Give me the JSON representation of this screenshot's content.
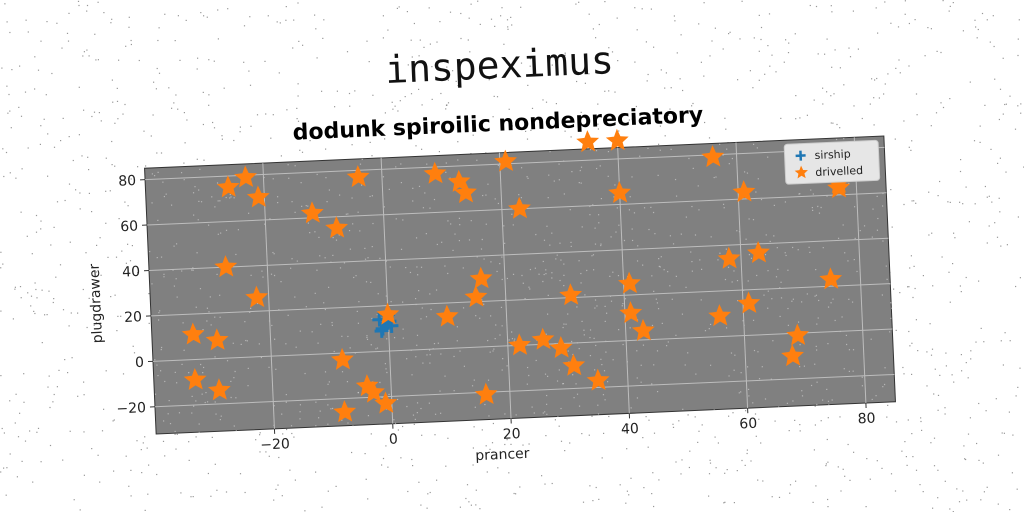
{
  "suptitle": "inspeximus",
  "chart_data": {
    "type": "scatter",
    "title": "dodunk spiroilic nondepreciatory",
    "xlabel": "prancer",
    "ylabel": "plugdrawer",
    "xlim": [
      -40,
      85
    ],
    "ylim": [
      -32,
      85
    ],
    "xticks": [
      -20,
      0,
      20,
      40,
      60,
      80
    ],
    "yticks": [
      -20,
      0,
      20,
      40,
      60,
      80
    ],
    "grid": true,
    "legend_position": "top-right",
    "background": "#808080",
    "series": [
      {
        "name": "sirship",
        "marker": "plus",
        "color": "#1f77b4",
        "x": [
          -1.5,
          -1.0,
          -0.5,
          0.0,
          0.5,
          -1.2,
          0.2
        ],
        "y": [
          14,
          10,
          12,
          16,
          11,
          9,
          13
        ]
      },
      {
        "name": "drivelled",
        "marker": "star",
        "color": "#ff7f0e",
        "x": [
          -23,
          -26,
          -21,
          -12,
          -8,
          -4,
          -27,
          -22,
          -33,
          -29,
          -33,
          -29,
          -8,
          -4,
          -3,
          -8,
          -1,
          0,
          9,
          13,
          14,
          21,
          23,
          15,
          16,
          10,
          16,
          22,
          26,
          29,
          31,
          31,
          35,
          35,
          40,
          40,
          41,
          43,
          41,
          56,
          58,
          61,
          63,
          56,
          61,
          69,
          68,
          75,
          77,
          77
        ],
        "y": [
          79,
          75,
          70,
          62,
          55,
          77,
          40,
          26,
          11,
          8,
          -9,
          -14,
          -3,
          -15,
          -18,
          -26,
          -23,
          16,
          77,
          73,
          68,
          81,
          60,
          22,
          30,
          14,
          -21,
          0,
          2,
          -2,
          -10,
          21,
          -17,
          88,
          88,
          65,
          25,
          4,
          12,
          79,
          34,
          63,
          36,
          9,
          14,
          -1,
          -10,
          23,
          65,
          63
        ]
      }
    ]
  }
}
